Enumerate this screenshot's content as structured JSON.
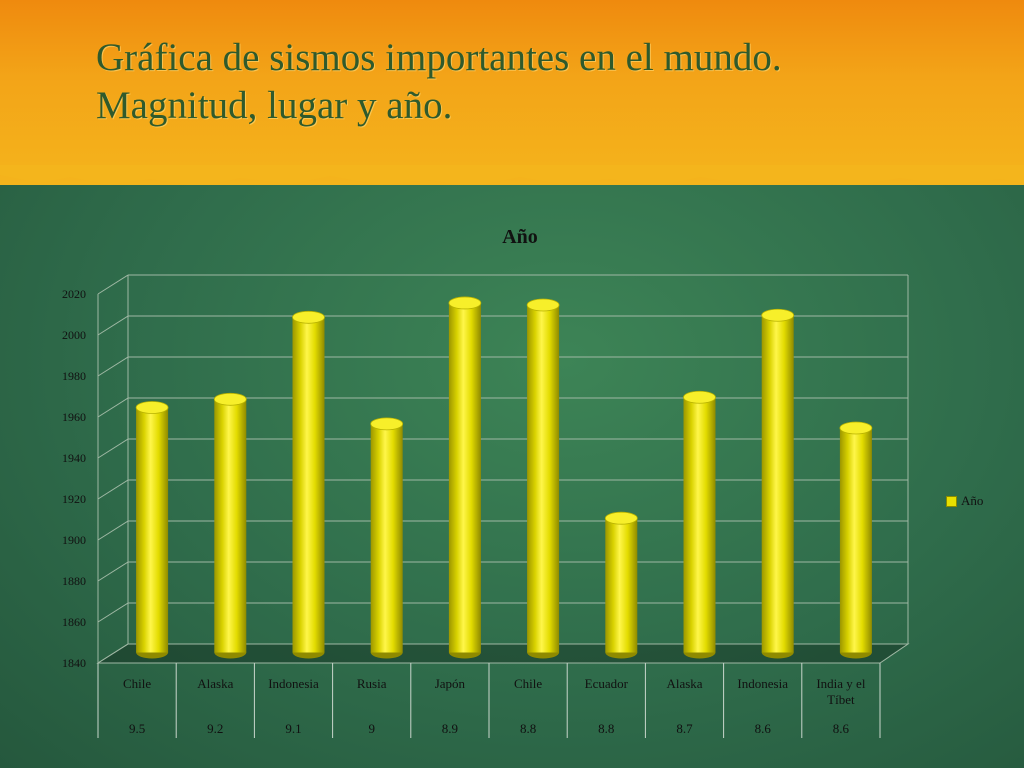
{
  "slide": {
    "title": "Gráfica de sismos importantes en el mundo. Magnitud, lugar y año."
  },
  "colors": {
    "header_top": "#ef8a0e",
    "header_bottom": "#f4b51c",
    "background": "#2f6e4a",
    "bar": "#e8e000",
    "title_text": "#2f5a2c"
  },
  "chart_data": {
    "type": "bar",
    "title": "Año",
    "categories": [
      "Chile",
      "Alaska",
      "Indonesia",
      "Rusia",
      "Japón",
      "Chile",
      "Ecuador",
      "Alaska",
      "Indonesia",
      "India y el Tíbet"
    ],
    "category_sublabels": [
      "9.5",
      "9.2",
      "9.1",
      "9",
      "8.9",
      "8.8",
      "8.8",
      "8.7",
      "8.6",
      "8.6"
    ],
    "series": [
      {
        "name": "Año",
        "values": [
          1960,
          1964,
          2004,
          1952,
          2011,
          2010,
          1906,
          1965,
          2005,
          1950
        ]
      }
    ],
    "yticks": [
      1840,
      1860,
      1880,
      1900,
      1920,
      1940,
      1960,
      1980,
      2000,
      2020
    ],
    "ylim": [
      1840,
      2020
    ],
    "grid": true,
    "legend_position": "right",
    "style": "3d-cylinder"
  }
}
